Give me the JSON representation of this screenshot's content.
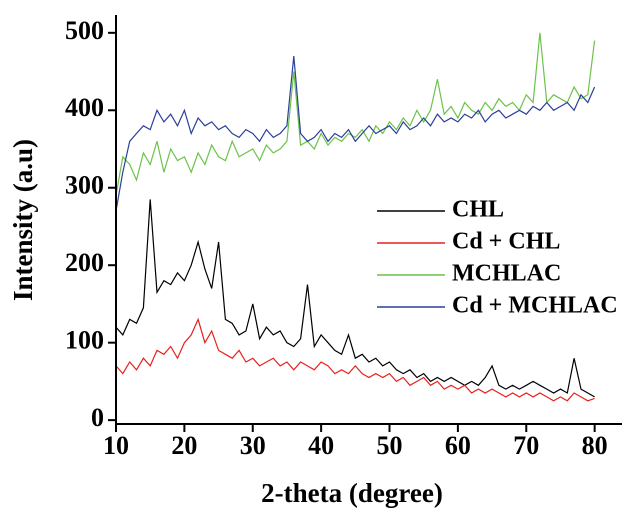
{
  "chart_data": {
    "type": "line",
    "x_label": "2-theta (degree)",
    "y_label": "Intensity (a.u)",
    "xlim": [
      10,
      84
    ],
    "ylim": [
      -5,
      523
    ],
    "xticks": [
      10,
      20,
      30,
      40,
      50,
      60,
      70,
      80
    ],
    "yticks": [
      0,
      100,
      200,
      300,
      400,
      500
    ],
    "x": [
      10,
      11,
      12,
      13,
      14,
      15,
      16,
      17,
      18,
      19,
      20,
      21,
      22,
      23,
      24,
      25,
      26,
      27,
      28,
      29,
      30,
      31,
      32,
      33,
      34,
      35,
      36,
      37,
      38,
      39,
      40,
      41,
      42,
      43,
      44,
      45,
      46,
      47,
      48,
      49,
      50,
      51,
      52,
      53,
      54,
      55,
      56,
      57,
      58,
      59,
      60,
      61,
      62,
      63,
      64,
      65,
      66,
      67,
      68,
      69,
      70,
      71,
      72,
      73,
      74,
      75,
      76,
      77,
      78,
      79,
      80
    ],
    "series": [
      {
        "name": "CHL",
        "color": "#000000",
        "values": [
          120,
          110,
          130,
          125,
          145,
          285,
          165,
          180,
          175,
          190,
          180,
          200,
          230,
          195,
          170,
          230,
          130,
          125,
          110,
          115,
          150,
          105,
          120,
          110,
          115,
          100,
          95,
          105,
          175,
          95,
          110,
          100,
          90,
          85,
          110,
          80,
          85,
          75,
          80,
          70,
          75,
          65,
          60,
          65,
          55,
          60,
          50,
          55,
          50,
          55,
          50,
          45,
          50,
          45,
          55,
          70,
          45,
          40,
          45,
          40,
          45,
          50,
          45,
          40,
          35,
          40,
          35,
          80,
          40,
          35,
          30
        ]
      },
      {
        "name": "Cd + CHL",
        "color": "#e8211e",
        "values": [
          70,
          60,
          75,
          65,
          80,
          70,
          90,
          85,
          95,
          80,
          100,
          110,
          130,
          100,
          115,
          90,
          85,
          80,
          90,
          75,
          80,
          70,
          75,
          80,
          70,
          75,
          65,
          75,
          70,
          65,
          75,
          70,
          60,
          65,
          60,
          70,
          60,
          55,
          60,
          55,
          60,
          50,
          55,
          45,
          50,
          55,
          45,
          50,
          40,
          45,
          40,
          45,
          35,
          40,
          35,
          40,
          35,
          30,
          35,
          30,
          35,
          30,
          35,
          30,
          25,
          30,
          25,
          35,
          30,
          25,
          28
        ]
      },
      {
        "name": "MCHLAC",
        "color": "#6cc24a",
        "values": [
          290,
          340,
          330,
          310,
          345,
          330,
          360,
          320,
          350,
          335,
          340,
          320,
          345,
          330,
          355,
          340,
          335,
          360,
          340,
          345,
          350,
          335,
          355,
          345,
          350,
          360,
          450,
          355,
          360,
          350,
          370,
          355,
          365,
          360,
          370,
          365,
          375,
          360,
          380,
          370,
          385,
          375,
          390,
          380,
          400,
          385,
          400,
          440,
          395,
          405,
          390,
          410,
          400,
          395,
          410,
          400,
          415,
          405,
          410,
          400,
          420,
          410,
          500,
          410,
          420,
          415,
          410,
          430,
          415,
          420,
          490
        ]
      },
      {
        "name": "Cd + MCHLAC",
        "color": "#2b3f9a",
        "values": [
          270,
          320,
          360,
          370,
          380,
          375,
          400,
          385,
          395,
          380,
          400,
          370,
          390,
          380,
          385,
          375,
          380,
          370,
          365,
          375,
          370,
          360,
          375,
          365,
          370,
          380,
          470,
          370,
          360,
          365,
          375,
          360,
          370,
          365,
          375,
          360,
          370,
          380,
          370,
          375,
          380,
          370,
          385,
          375,
          380,
          390,
          380,
          395,
          385,
          390,
          385,
          395,
          390,
          400,
          385,
          395,
          400,
          390,
          395,
          400,
          395,
          405,
          400,
          410,
          400,
          405,
          410,
          400,
          420,
          410,
          430
        ]
      }
    ]
  }
}
